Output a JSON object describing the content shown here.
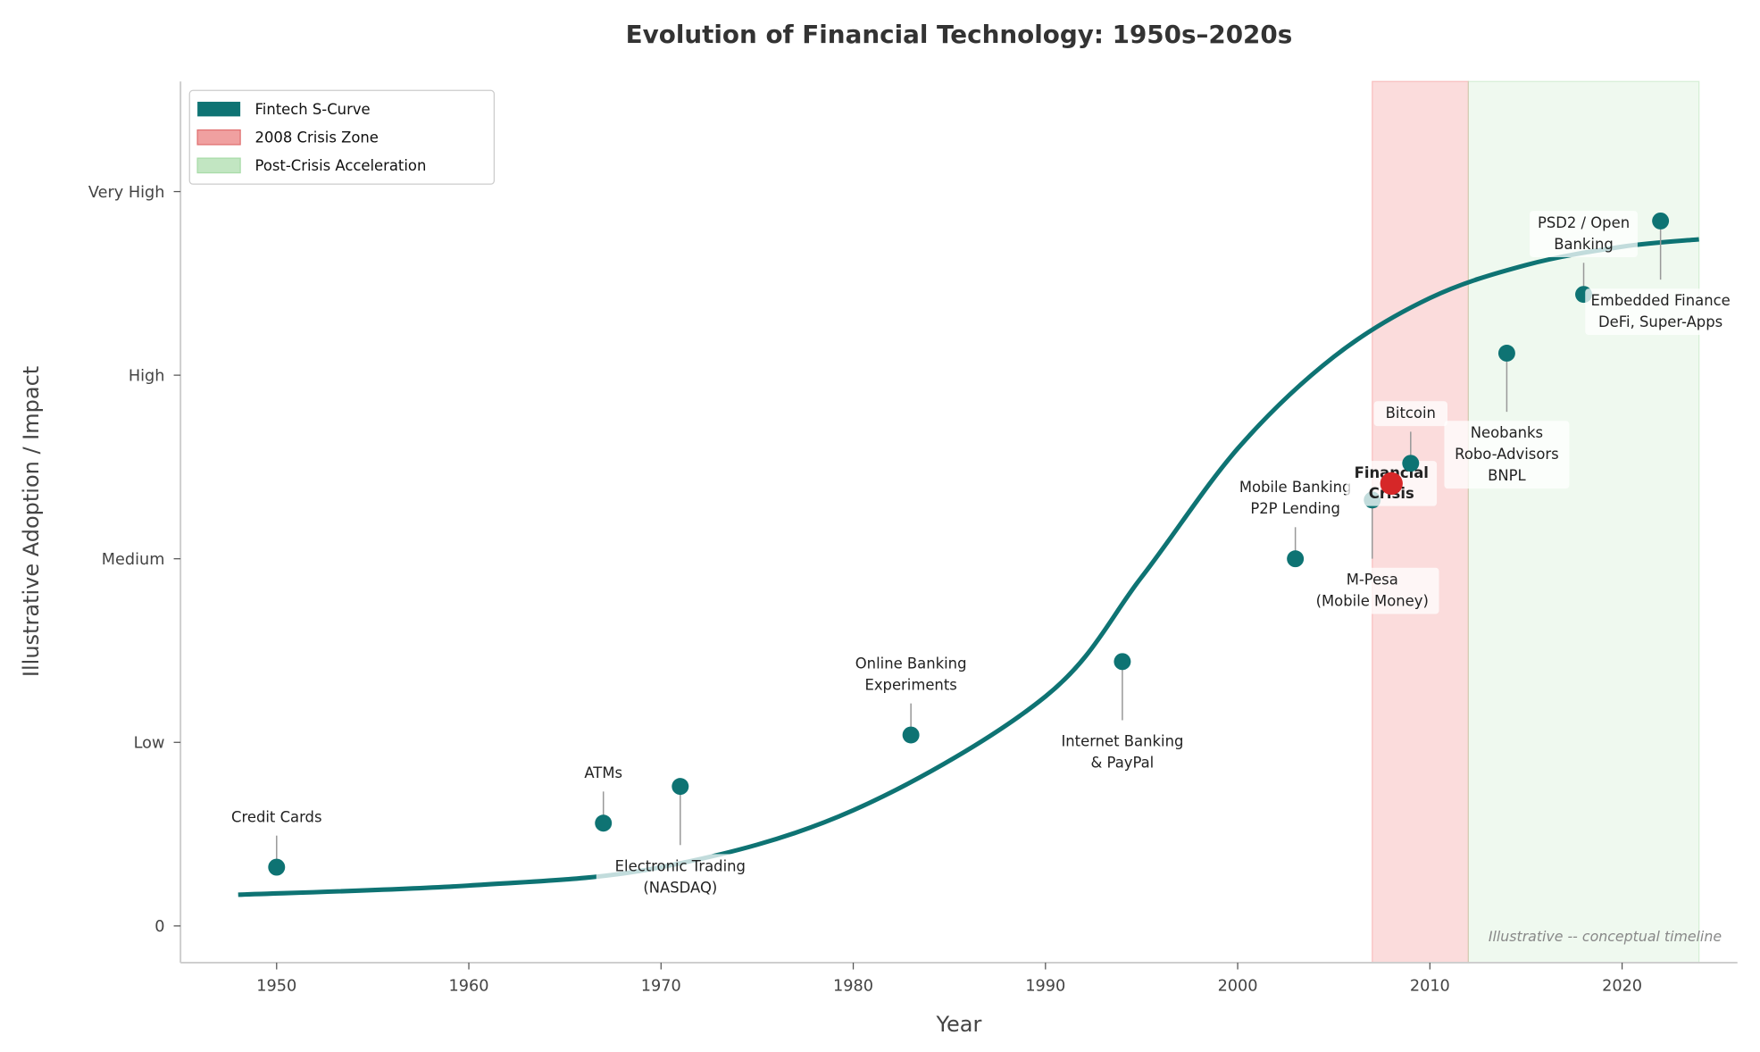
{
  "chart_data": {
    "type": "line",
    "title": "Evolution of Financial Technology: 1950s–2020s",
    "xlabel": "Year",
    "ylabel": "Illustrative Adoption / Impact",
    "xlim": [
      1945,
      2026
    ],
    "ylim": [
      -0.2,
      4.6
    ],
    "x_ticks": [
      1950,
      1960,
      1970,
      1980,
      1990,
      2000,
      2010,
      2020
    ],
    "y_ticks": [
      {
        "value": 0,
        "label": "0"
      },
      {
        "value": 1,
        "label": "Low"
      },
      {
        "value": 2,
        "label": "Medium"
      },
      {
        "value": 3,
        "label": "High"
      },
      {
        "value": 4,
        "label": "Very High"
      }
    ],
    "grid": false,
    "legend": {
      "placement": "top-left",
      "entries": [
        "Fintech S-Curve",
        "2008 Crisis Zone",
        "Post-Crisis Acceleration"
      ]
    },
    "curve": {
      "name": "Fintech S-Curve",
      "color": "#0e7373",
      "x_start": 1948,
      "x_end": 2024,
      "points": [
        [
          1948,
          0.17
        ],
        [
          1960,
          0.22
        ],
        [
          1970,
          0.32
        ],
        [
          1980,
          0.63
        ],
        [
          1990,
          1.25
        ],
        [
          1995,
          1.9
        ],
        [
          2000,
          2.6
        ],
        [
          2005,
          3.1
        ],
        [
          2010,
          3.42
        ],
        [
          2015,
          3.6
        ],
        [
          2020,
          3.7
        ],
        [
          2024,
          3.74
        ]
      ]
    },
    "spans": [
      {
        "name": "2008 Crisis Zone",
        "x0": 2007,
        "x1": 2012,
        "color": "#f08080"
      },
      {
        "name": "Post-Crisis Acceleration",
        "x0": 2012,
        "x1": 2024,
        "color": "#a8dca8"
      }
    ],
    "milestones": [
      {
        "year": 1950,
        "value": 0.32,
        "label": [
          "Credit Cards"
        ],
        "position": "above"
      },
      {
        "year": 1967,
        "value": 0.56,
        "label": [
          "ATMs"
        ],
        "position": "above"
      },
      {
        "year": 1971,
        "value": 0.76,
        "label": [
          "Electronic Trading",
          "(NASDAQ)"
        ],
        "position": "below"
      },
      {
        "year": 1983,
        "value": 1.04,
        "label": [
          "Online Banking",
          "Experiments"
        ],
        "position": "above"
      },
      {
        "year": 1994,
        "value": 1.44,
        "label": [
          "Internet Banking",
          "& PayPal"
        ],
        "position": "below"
      },
      {
        "year": 2003,
        "value": 2.0,
        "label": [
          "Mobile Banking",
          "P2P Lending"
        ],
        "position": "above"
      },
      {
        "year": 2007,
        "value": 2.32,
        "label": [
          "M-Pesa",
          "(Mobile Money)"
        ],
        "position": "below"
      },
      {
        "year": 2008,
        "value": 2.41,
        "label": [
          "Financial",
          "Crisis"
        ],
        "position": "center",
        "highlight": true,
        "color": "#d62728"
      },
      {
        "year": 2009,
        "value": 2.52,
        "label": [
          "Bitcoin"
        ],
        "position": "above"
      },
      {
        "year": 2014,
        "value": 3.12,
        "label": [
          "Neobanks",
          "Robo-Advisors",
          "BNPL"
        ],
        "position": "below"
      },
      {
        "year": 2018,
        "value": 3.44,
        "label": [
          "PSD2 / Open",
          "Banking"
        ],
        "position": "above"
      },
      {
        "year": 2022,
        "value": 3.84,
        "label": [
          "Embedded Finance",
          "DeFi, Super-Apps"
        ],
        "position": "below"
      }
    ],
    "footnote": "Illustrative -- conceptual timeline"
  }
}
